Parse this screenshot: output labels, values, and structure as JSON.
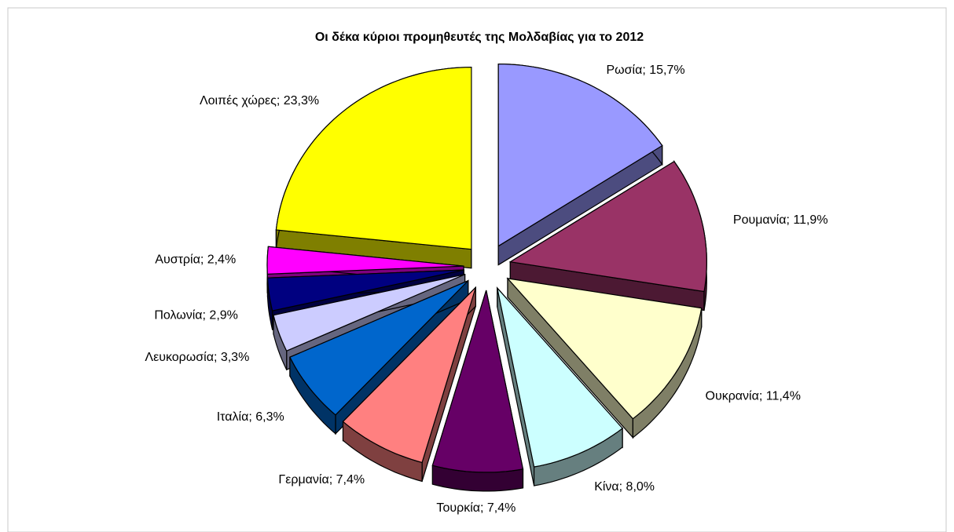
{
  "chart_data": {
    "type": "pie3d",
    "title": "Οι δέκα κύριοι προμηθευτές της Μολδαβίας για το 2012",
    "values": [
      15.7,
      11.9,
      11.4,
      8.0,
      7.4,
      7.4,
      6.3,
      3.3,
      2.9,
      2.4,
      23.3
    ],
    "value_labels": [
      "Ρωσία; 15,7%",
      "Ρουμανία; 11,9%",
      "Ουκρανία; 11,4%",
      "Κίνα; 8,0%",
      "Τουρκία; 7,4%",
      "Γερμανία; 7,4%",
      "Ιταλία; 6,3%",
      "Λευκορωσία; 3,3%",
      "Πολωνία; 2,9%",
      "Αυστρία; 2,4%",
      "Λοιπές χώρες; 23,3%"
    ],
    "colors": [
      "#9999ff",
      "#993366",
      "#ffffcc",
      "#ccffff",
      "#660066",
      "#ff8080",
      "#0066cc",
      "#ccccff",
      "#000080",
      "#ff00ff",
      "#ffff00"
    ]
  }
}
